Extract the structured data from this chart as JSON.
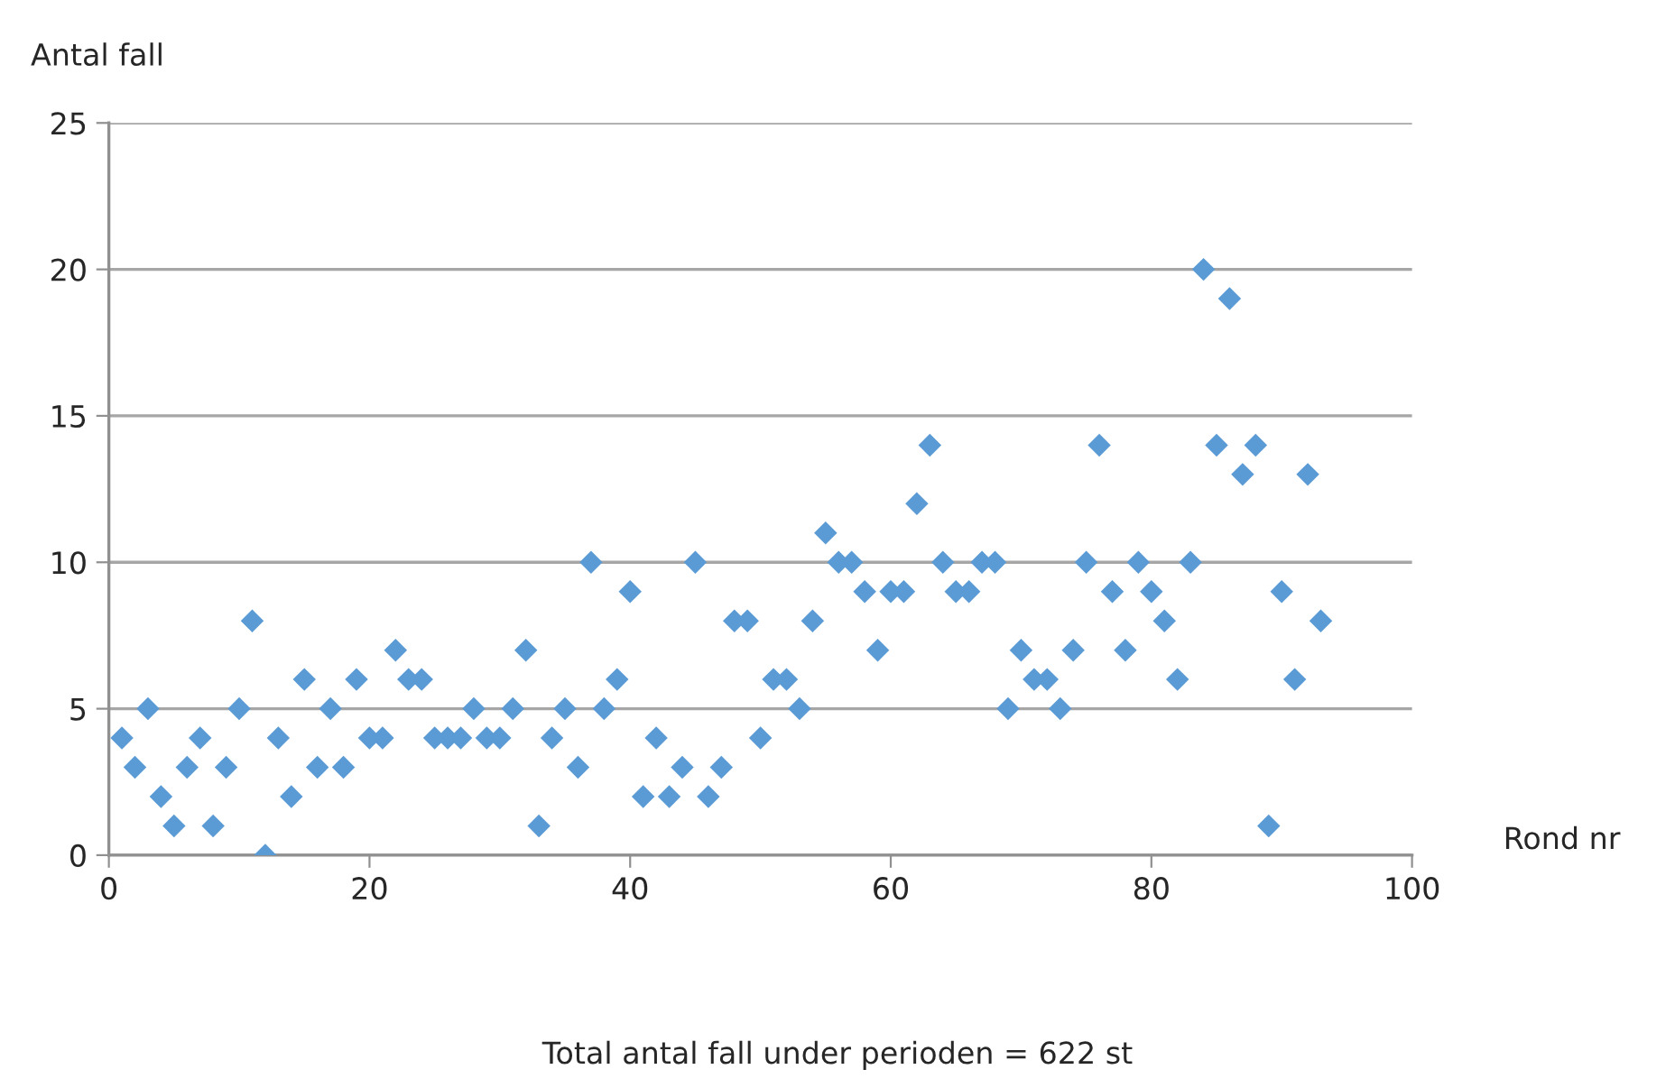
{
  "chart_data": {
    "type": "scatter",
    "xlabel": "Rond nr",
    "ylabel": "Antal fall",
    "x": [
      1,
      2,
      3,
      4,
      5,
      6,
      7,
      8,
      9,
      10,
      11,
      12,
      13,
      14,
      15,
      16,
      17,
      18,
      19,
      20,
      21,
      22,
      23,
      24,
      25,
      26,
      27,
      28,
      29,
      30,
      31,
      32,
      33,
      34,
      35,
      36,
      37,
      38,
      39,
      40,
      41,
      42,
      43,
      44,
      45,
      46,
      47,
      48,
      49,
      50,
      51,
      52,
      53,
      54,
      55,
      56,
      57,
      58,
      59,
      60,
      61,
      62,
      63,
      64,
      65,
      66,
      67,
      68,
      69,
      70,
      71,
      72,
      73,
      74,
      75,
      76,
      77,
      78,
      79,
      80,
      81,
      82,
      83,
      84,
      85,
      86,
      87,
      88,
      89,
      90,
      91,
      92,
      93
    ],
    "series": [
      {
        "color": "#5b9bd5",
        "values": [
          4,
          3,
          5,
          2,
          1,
          3,
          4,
          1,
          3,
          5,
          8,
          0,
          4,
          2,
          6,
          3,
          5,
          3,
          6,
          4,
          4,
          7,
          6,
          6,
          4,
          4,
          4,
          5,
          4,
          4,
          5,
          7,
          1,
          4,
          5,
          3,
          10,
          5,
          6,
          9,
          2,
          4,
          2,
          3,
          10,
          2,
          3,
          8,
          8,
          4,
          6,
          6,
          5,
          8,
          11,
          10,
          10,
          9,
          7,
          9,
          9,
          12,
          14,
          10,
          9,
          9,
          10,
          10,
          5,
          7,
          6,
          6,
          5,
          7,
          10,
          14,
          9,
          7,
          10,
          9,
          8,
          6,
          10,
          20,
          14,
          19,
          13,
          14,
          1,
          9,
          6,
          13,
          8
        ]
      }
    ],
    "xlim": [
      0,
      100
    ],
    "xticks": [
      0,
      20,
      40,
      60,
      80,
      100
    ],
    "ylim": [
      0,
      25
    ],
    "yticks": [
      0,
      5,
      10,
      15,
      20,
      25
    ],
    "grid": "y",
    "marker": "diamond",
    "legend": false,
    "annotations": [
      "Total antal fall under perioden = 622 st"
    ]
  }
}
